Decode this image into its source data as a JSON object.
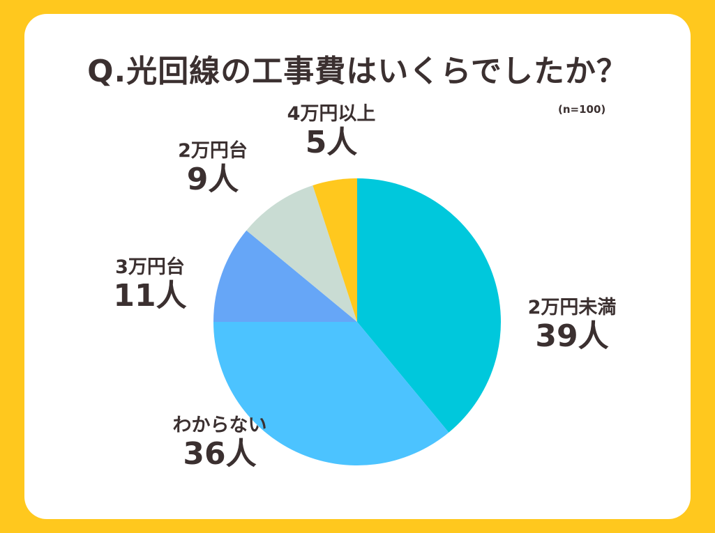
{
  "chart_data": {
    "type": "pie",
    "title": "Q.光回線の工事費はいくらでしたか？",
    "subtitle": "(n=100)",
    "unit": "人",
    "slices": [
      {
        "label": "2万円未満",
        "value": 39,
        "display": "39人",
        "color": "#00C8DC"
      },
      {
        "label": "わからない",
        "value": 36,
        "display": "36人",
        "color": "#4CC3FF"
      },
      {
        "label": "3万円台",
        "value": 11,
        "display": "11人",
        "color": "#66A6F7"
      },
      {
        "label": "2万円台",
        "value": 9,
        "display": "9人",
        "color": "#C9DCD3"
      },
      {
        "label": "4万円以上",
        "value": 5,
        "display": "5人",
        "color": "#FFC81E"
      }
    ],
    "start_angle": "top",
    "direction": "clockwise"
  }
}
